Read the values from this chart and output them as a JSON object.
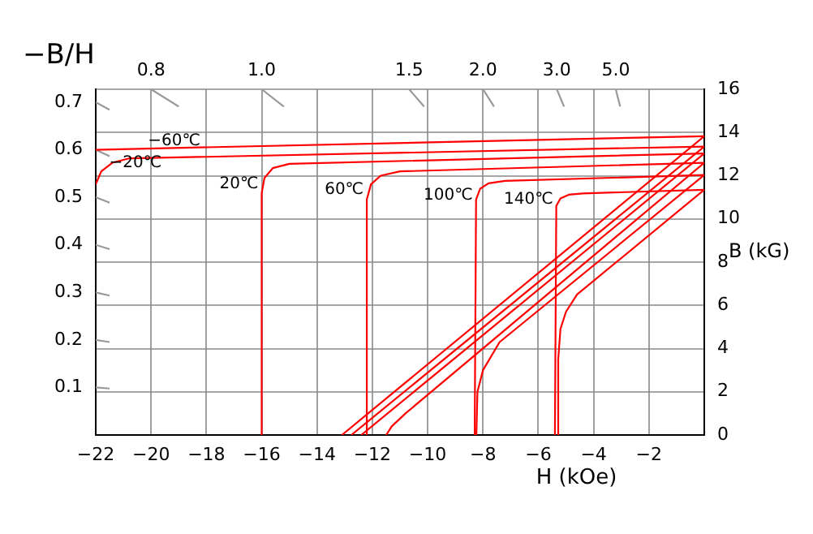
{
  "chart_data": {
    "type": "line",
    "xlabel": "H (kOe)",
    "ylabel": "B (kG)",
    "y2label": "−B/H",
    "xlim": [
      -22,
      0
    ],
    "xticks": [
      -22,
      -20,
      -18,
      -16,
      -14,
      -12,
      -10,
      -8,
      -6,
      -4,
      -2
    ],
    "ylim": [
      0,
      16
    ],
    "yticks": [
      0,
      2,
      4,
      6,
      8,
      10,
      12,
      14,
      16
    ],
    "y2lim": [
      0,
      0.727
    ],
    "y2ticks": [
      0.1,
      0.2,
      0.3,
      0.4,
      0.5,
      0.6,
      0.7
    ],
    "grid": true,
    "marker": "none",
    "line_style": "solid",
    "series": [
      {
        "color": "#ff0000",
        "x": [
          -22,
          0
        ],
        "values": [
          13.2,
          13.83
        ]
      },
      {
        "color": "#ff0000",
        "x": [
          -22,
          -21.8,
          -21.4,
          -20.8,
          0
        ],
        "values": [
          11.6,
          12.2,
          12.6,
          12.8,
          13.35
        ]
      },
      {
        "color": "#ff0000",
        "x": [
          -16.0,
          -16.0,
          -15.9,
          -15.6,
          -15.0,
          0
        ],
        "values": [
          0,
          11.2,
          11.9,
          12.35,
          12.55,
          13.03
        ]
      },
      {
        "color": "#ff0000",
        "x": [
          -12.2,
          -12.2,
          -12.05,
          -11.7,
          -11.0,
          0
        ],
        "values": [
          0,
          10.9,
          11.6,
          12.0,
          12.2,
          12.6
        ]
      },
      {
        "color": "#ff0000",
        "x": [
          -8.3,
          -8.25,
          -8.1,
          -7.8,
          -7.2,
          0
        ],
        "values": [
          0,
          10.9,
          11.4,
          11.65,
          11.76,
          12.03
        ]
      },
      {
        "color": "#ff0000",
        "x": [
          -5.4,
          -5.35,
          -5.2,
          -4.9,
          -4.4,
          0
        ],
        "values": [
          0,
          10.6,
          10.95,
          11.12,
          11.18,
          11.35
        ]
      },
      {
        "color": "#ff0000",
        "x": [
          -13.1,
          0
        ],
        "values": [
          0,
          13.83
        ]
      },
      {
        "color": "#ff0000",
        "x": [
          -12.76,
          0
        ],
        "values": [
          0,
          13.35
        ]
      },
      {
        "color": "#ff0000",
        "x": [
          -12.4,
          0
        ],
        "values": [
          0,
          13.03
        ]
      },
      {
        "color": "#ff0000",
        "x": [
          -11.5,
          -11.3,
          -10.8,
          0
        ],
        "values": [
          0,
          0.4,
          1.0,
          12.6
        ]
      },
      {
        "color": "#ff0000",
        "x": [
          -8.24,
          -8.2,
          -8.0,
          -7.4,
          0
        ],
        "values": [
          0,
          2.0,
          3.0,
          4.3,
          12.03
        ]
      },
      {
        "color": "#ff0000",
        "x": [
          -5.3,
          -5.28,
          -5.2,
          -5.0,
          -4.6,
          0
        ],
        "values": [
          0,
          3.5,
          4.9,
          5.7,
          6.5,
          11.35
        ]
      },
      {
        "color": "#999999",
        "x": [
          -22,
          -21.5
        ],
        "values": [
          2.2,
          2.15
        ]
      },
      {
        "color": "#999999",
        "x": [
          -22,
          -21.5
        ],
        "values": [
          4.4,
          4.3
        ]
      },
      {
        "color": "#999999",
        "x": [
          -22,
          -21.5
        ],
        "values": [
          6.6,
          6.45
        ]
      },
      {
        "color": "#999999",
        "x": [
          -22,
          -21.5
        ],
        "values": [
          8.8,
          8.6
        ]
      },
      {
        "color": "#999999",
        "x": [
          -22,
          -21.5
        ],
        "values": [
          11,
          10.75
        ]
      },
      {
        "color": "#999999",
        "x": [
          -22,
          -21.5
        ],
        "values": [
          13.2,
          12.9
        ]
      },
      {
        "color": "#999999",
        "x": [
          -22,
          -21.5
        ],
        "values": [
          15.4,
          15.05
        ]
      },
      {
        "color": "#999999",
        "x": [
          -20,
          -19
        ],
        "values": [
          16,
          15.2
        ]
      },
      {
        "color": "#999999",
        "x": [
          -16,
          -15.2
        ],
        "values": [
          16,
          15.2
        ]
      },
      {
        "color": "#999999",
        "x": [
          -10.67,
          -10.13
        ],
        "values": [
          16,
          15.2
        ]
      },
      {
        "color": "#999999",
        "x": [
          -8,
          -7.6
        ],
        "values": [
          16,
          15.2
        ]
      },
      {
        "color": "#999999",
        "x": [
          -5.33,
          -5.07
        ],
        "values": [
          16,
          15.2
        ]
      },
      {
        "color": "#999999",
        "x": [
          -3.2,
          -3.04
        ],
        "values": [
          16,
          15.2
        ]
      }
    ],
    "annotations": [
      {
        "text": "−60℃",
        "x": -18.1,
        "y": 13.6
      },
      {
        "text": "−20℃",
        "x": -19.5,
        "y": 12.6
      },
      {
        "text": "20℃",
        "x": -16.0,
        "y": 11.6
      },
      {
        "text": "60℃",
        "x": -12.2,
        "y": 11.35
      },
      {
        "text": "100℃",
        "x": -8.25,
        "y": 11.1
      },
      {
        "text": "140℃",
        "x": -5.35,
        "y": 10.9
      },
      {
        "text": "0.8",
        "x": -20,
        "y": 16
      },
      {
        "text": "1.0",
        "x": -16,
        "y": 16
      },
      {
        "text": "1.5",
        "x": -10.67,
        "y": 16
      },
      {
        "text": "2.0",
        "x": -8,
        "y": 16
      },
      {
        "text": "3.0",
        "x": -5.33,
        "y": 16
      },
      {
        "text": "5.0",
        "x": -3.2,
        "y": 16
      }
    ]
  }
}
